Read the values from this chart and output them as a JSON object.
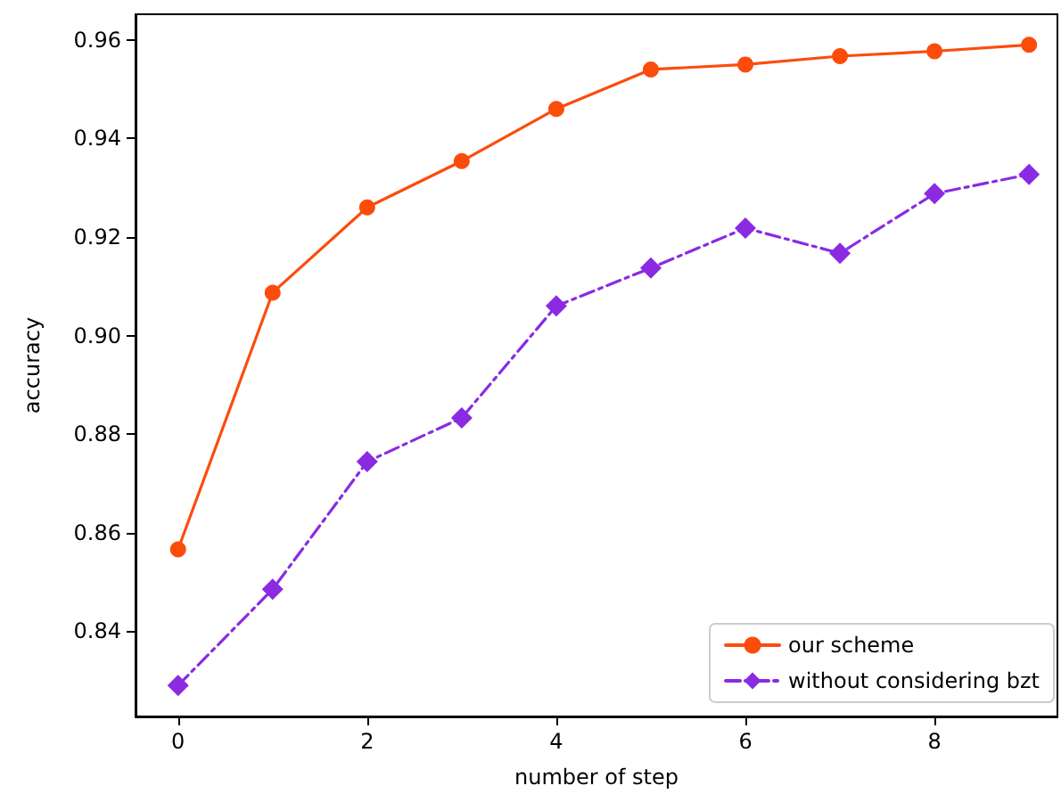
{
  "chart_data": {
    "type": "line",
    "xlabel": "number of step",
    "ylabel": "accuracy",
    "x": [
      0,
      1,
      2,
      3,
      4,
      5,
      6,
      7,
      8,
      9
    ],
    "xlim": [
      -0.45,
      9.3
    ],
    "xticks": [
      0,
      2,
      4,
      6,
      8
    ],
    "ylim": [
      0.8227,
      0.9652
    ],
    "yticks": [
      0.84,
      0.86,
      0.88,
      {
        "value": 0.9,
        "label": "0.90"
      },
      0.92,
      0.94,
      0.96
    ],
    "grid": false,
    "legend": "bottom right",
    "series": [
      {
        "name": "our scheme",
        "color": "#fc4c0c",
        "marker": "circle",
        "line_style": "solid",
        "values": [
          0.8566,
          0.9087,
          0.926,
          0.9354,
          0.946,
          0.954,
          0.955,
          0.9567,
          0.9577,
          0.959
        ]
      },
      {
        "name": "without considering bzt",
        "color": "#8a2be2",
        "marker": "diamond",
        "line_style": "dashdot",
        "values": [
          0.829,
          0.8485,
          0.8744,
          0.8833,
          0.906,
          0.9137,
          0.9218,
          0.9167,
          0.9288,
          0.9327
        ]
      }
    ]
  }
}
